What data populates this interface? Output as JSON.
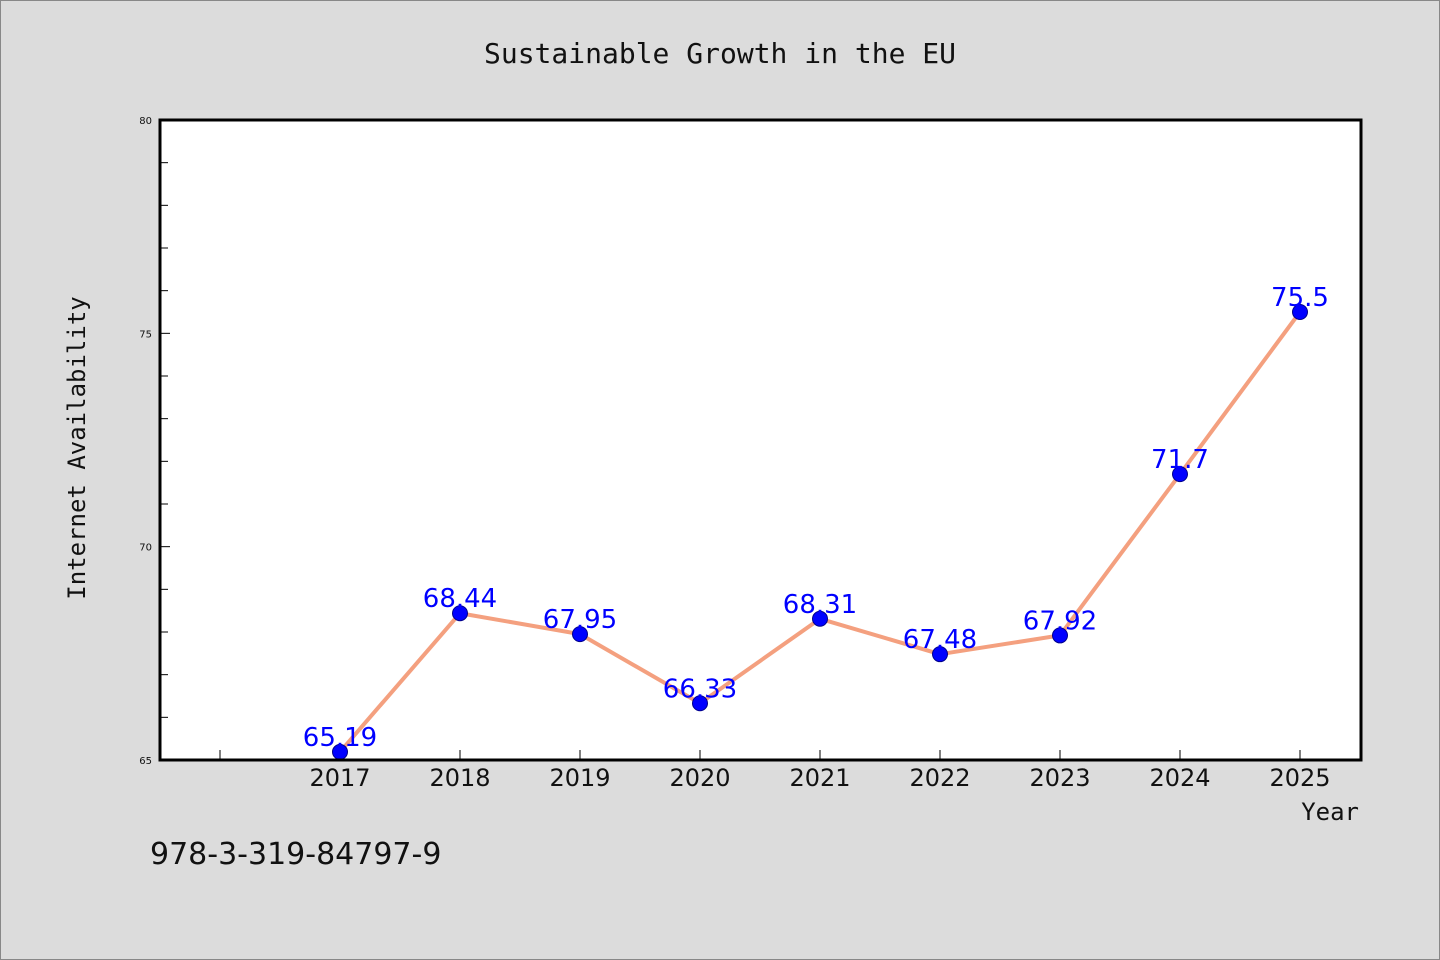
{
  "chart_data": {
    "type": "line",
    "title": "Sustainable Growth in the EU",
    "xlabel": "Year",
    "ylabel": "Internet Availability",
    "categories": [
      "2017",
      "2018",
      "2019",
      "2020",
      "2021",
      "2022",
      "2023",
      "2024",
      "2025"
    ],
    "series": [
      {
        "values": [
          65.19,
          68.44,
          67.95,
          66.33,
          68.31,
          67.48,
          67.92,
          71.7,
          75.5
        ],
        "labels": [
          "65.19",
          "68.44",
          "67.95",
          "66.33",
          "68.31",
          "67.48",
          "67.92",
          "71.7",
          "75.5"
        ]
      }
    ],
    "ylim": [
      65,
      80
    ],
    "yticks": [
      "65",
      "70",
      "75",
      "80"
    ],
    "grid": false,
    "legend": "none",
    "colors": {
      "line": "#f4a07f",
      "marker": "#0000ff",
      "marker_edge": "#00008b",
      "data_label": "#0000ff",
      "background": "#dcdcdc",
      "plot_background": "#ffffff"
    }
  },
  "footnote": "978-3-319-84797-9"
}
